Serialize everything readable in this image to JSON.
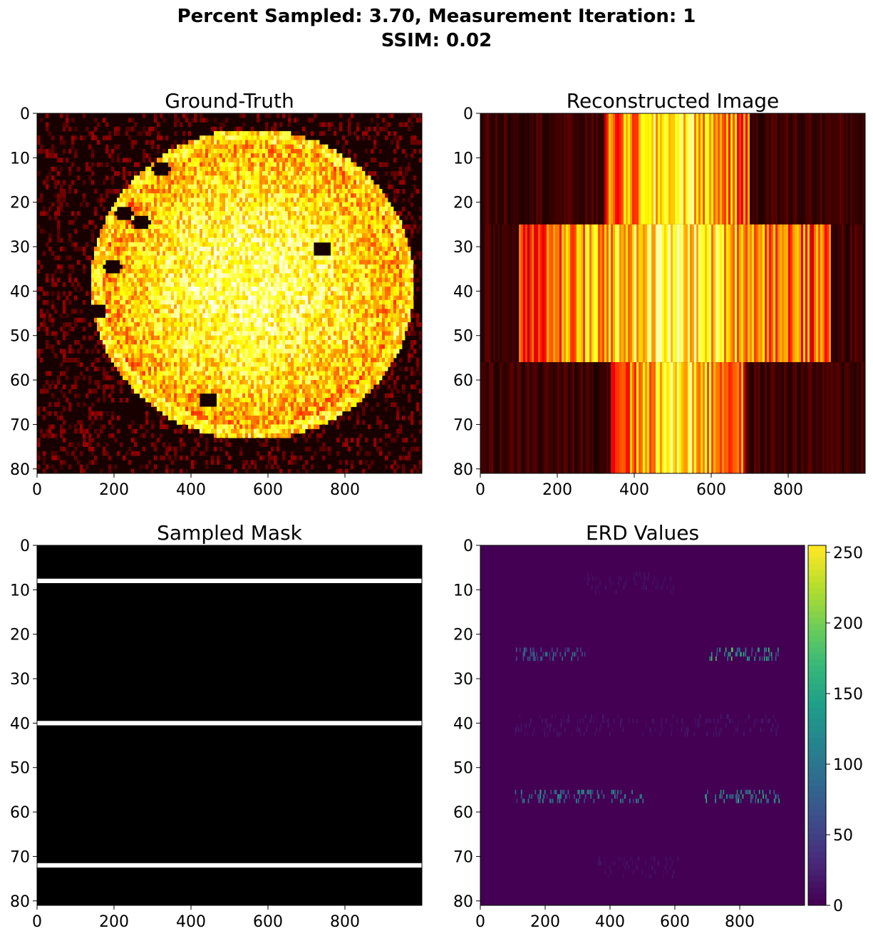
{
  "figure": {
    "suptitle_line1": "Percent Sampled: 3.70, Measurement Iteration: 1",
    "suptitle_line2": "SSIM: 0.02"
  },
  "chart_data": [
    {
      "type": "heatmap",
      "title": "Ground-Truth",
      "colormap": "hot",
      "xlim": [
        0,
        1000
      ],
      "ylim": [
        81,
        0
      ],
      "xticks": [
        0,
        200,
        400,
        600,
        800
      ],
      "yticks": [
        0,
        10,
        20,
        30,
        40,
        50,
        60,
        70,
        80
      ],
      "description_of_content": "bright roughly circular object centered near x=560, y=38",
      "object": {
        "center_x": 560,
        "center_y": 38,
        "radius_x": 420,
        "radius_y": 35
      },
      "dark_spots": [
        {
          "x": 320,
          "y": 12
        },
        {
          "x": 225,
          "y": 22
        },
        {
          "x": 270,
          "y": 24
        },
        {
          "x": 445,
          "y": 64
        },
        {
          "x": 195,
          "y": 34
        },
        {
          "x": 155,
          "y": 44
        },
        {
          "x": 740,
          "y": 30
        }
      ]
    },
    {
      "type": "heatmap",
      "title": "Reconstructed Image",
      "colormap": "hot",
      "xlim": [
        0,
        1000
      ],
      "ylim": [
        81,
        0
      ],
      "xticks": [
        0,
        200,
        400,
        600,
        800
      ],
      "yticks": [
        0,
        10,
        20,
        30,
        40,
        50,
        60,
        70,
        80
      ],
      "bands": [
        {
          "y_from": 0,
          "y_to": 25,
          "bright_x_from": 325,
          "bright_x_to": 700
        },
        {
          "y_from": 25,
          "y_to": 56,
          "bright_x_from": 100,
          "bright_x_to": 910
        },
        {
          "y_from": 56,
          "y_to": 81,
          "bright_x_from": 340,
          "bright_x_to": 690
        }
      ]
    },
    {
      "type": "heatmap",
      "title": "Sampled Mask",
      "colormap": "gray",
      "xlim": [
        0,
        1000
      ],
      "ylim": [
        81,
        0
      ],
      "xticks": [
        0,
        200,
        400,
        600,
        800
      ],
      "yticks": [
        0,
        10,
        20,
        30,
        40,
        50,
        60,
        70,
        80
      ],
      "sampled_rows": [
        8,
        40,
        72
      ]
    },
    {
      "type": "heatmap",
      "title": "ERD Values",
      "colormap": "viridis",
      "xlim": [
        0,
        1000
      ],
      "ylim": [
        81,
        0
      ],
      "xticks": [
        0,
        200,
        400,
        600,
        800
      ],
      "yticks": [
        0,
        10,
        20,
        30,
        40,
        50,
        60,
        70,
        80
      ],
      "colorbar": {
        "min": 0,
        "max": 255,
        "ticks": [
          0,
          50,
          100,
          150,
          200,
          250
        ]
      },
      "high_rows": [
        {
          "y": 24,
          "x_from": 100,
          "x_to": 330,
          "level": 90
        },
        {
          "y": 24,
          "x_from": 700,
          "x_to": 920,
          "level": 150
        },
        {
          "y": 56,
          "x_from": 100,
          "x_to": 500,
          "level": 110
        },
        {
          "y": 56,
          "x_from": 690,
          "x_to": 920,
          "level": 130
        }
      ],
      "faint_rows": [
        {
          "y": 8,
          "x_from": 320,
          "x_to": 600,
          "level": 12
        },
        {
          "y": 40,
          "x_from": 100,
          "x_to": 920,
          "level": 15
        },
        {
          "y": 72,
          "x_from": 360,
          "x_to": 610,
          "level": 12
        }
      ]
    }
  ]
}
